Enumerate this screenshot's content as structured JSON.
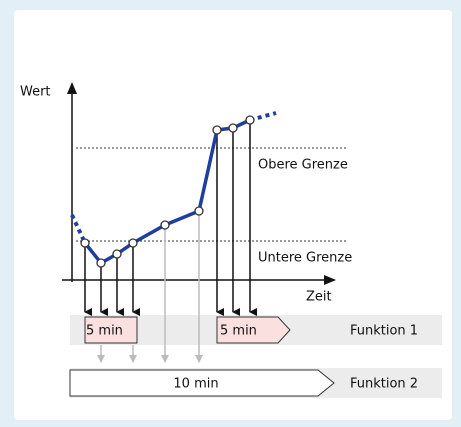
{
  "diagram": {
    "y_axis_label": "Wert",
    "x_axis_label": "Zeit",
    "upper_limit_label": "Obere Grenze",
    "lower_limit_label": "Untere Grenze",
    "function_1": {
      "label": "Funktion 1",
      "intervals": [
        "5 min",
        "5 min"
      ]
    },
    "function_2": {
      "label": "Funktion 2",
      "intervals": [
        "10 min"
      ]
    }
  }
}
